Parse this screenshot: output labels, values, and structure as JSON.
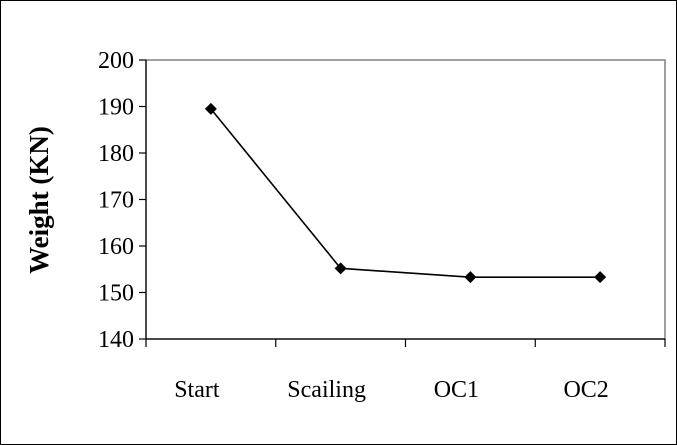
{
  "chart_data": {
    "type": "line",
    "title": "",
    "xlabel": "",
    "ylabel": "Weight (KN)",
    "categories": [
      "Start",
      "Scailing",
      "OC1",
      "OC2"
    ],
    "series": [
      {
        "values": [
          189.5,
          155.2,
          153.3,
          153.3
        ]
      }
    ],
    "ylim": [
      140,
      200
    ],
    "yticks": [
      140,
      150,
      160,
      170,
      180,
      190,
      200
    ],
    "grid": false,
    "legend": "none",
    "marker": "diamond",
    "colors": {
      "line": "#000000",
      "marker": "#000000",
      "plot_border": "#808080",
      "axis": "#000000",
      "frame": "#000000"
    }
  }
}
